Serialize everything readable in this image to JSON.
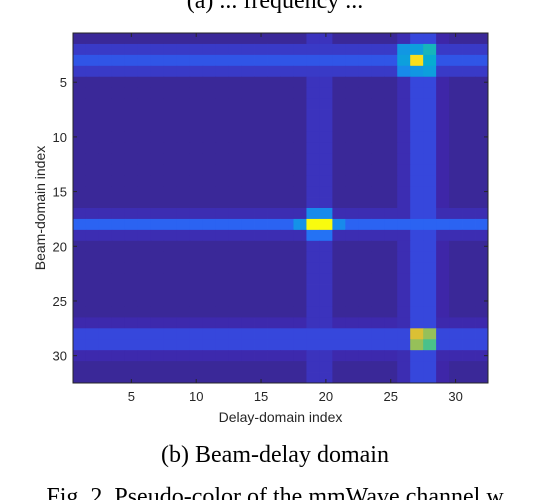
{
  "top_caption_fragment": "(a) ... frequency ...",
  "caption": "(b) Beam-delay domain",
  "bottom_caption_fragment": "Fig. 2. Pseudo-color of the mmWave channel w",
  "colors": {
    "background": "#3b23a3",
    "axis": "#262626"
  },
  "chart_data": {
    "type": "heatmap",
    "title": "",
    "xlabel": "Delay-domain index",
    "ylabel": "Beam-domain index",
    "xlim": [
      0.5,
      32.5
    ],
    "ylim": [
      0.5,
      32.5
    ],
    "y_reversed": true,
    "x_ticks": [
      5,
      10,
      15,
      20,
      25,
      30
    ],
    "y_ticks": [
      5,
      10,
      15,
      20,
      25,
      30
    ],
    "grid": false,
    "colormap": "parula",
    "rows": 32,
    "cols": 32,
    "base_value": 0.05,
    "peaks": [
      {
        "beam": 18,
        "delay": 19,
        "value": 1.0
      },
      {
        "beam": 18,
        "delay": 20,
        "value": 1.0
      },
      {
        "beam": 3,
        "delay": 27,
        "value": 0.95
      },
      {
        "beam": 28,
        "delay": 27,
        "value": 0.85
      },
      {
        "beam": 28,
        "delay": 28,
        "value": 0.75
      },
      {
        "beam": 29,
        "delay": 27,
        "value": 0.75
      },
      {
        "beam": 29,
        "delay": 28,
        "value": 0.65
      }
    ],
    "neighbors": [
      {
        "beam": 2,
        "delay": 26,
        "value": 0.42
      },
      {
        "beam": 2,
        "delay": 27,
        "value": 0.45
      },
      {
        "beam": 2,
        "delay": 28,
        "value": 0.55
      },
      {
        "beam": 3,
        "delay": 26,
        "value": 0.45
      },
      {
        "beam": 3,
        "delay": 28,
        "value": 0.5
      },
      {
        "beam": 4,
        "delay": 26,
        "value": 0.38
      },
      {
        "beam": 4,
        "delay": 27,
        "value": 0.42
      },
      {
        "beam": 4,
        "delay": 28,
        "value": 0.45
      },
      {
        "beam": 17,
        "delay": 19,
        "value": 0.38
      },
      {
        "beam": 17,
        "delay": 20,
        "value": 0.38
      },
      {
        "beam": 19,
        "delay": 19,
        "value": 0.32
      },
      {
        "beam": 19,
        "delay": 20,
        "value": 0.32
      },
      {
        "beam": 18,
        "delay": 18,
        "value": 0.4
      },
      {
        "beam": 18,
        "delay": 21,
        "value": 0.38
      }
    ],
    "row_stripes": [
      {
        "beam": 2,
        "value": 0.16
      },
      {
        "beam": 3,
        "value": 0.24
      },
      {
        "beam": 4,
        "value": 0.16
      },
      {
        "beam": 17,
        "value": 0.12
      },
      {
        "beam": 18,
        "value": 0.28
      },
      {
        "beam": 19,
        "value": 0.12
      },
      {
        "beam": 27,
        "value": 0.11
      },
      {
        "beam": 28,
        "value": 0.2
      },
      {
        "beam": 29,
        "value": 0.2
      },
      {
        "beam": 30,
        "value": 0.11
      }
    ],
    "col_stripes": [
      {
        "delay": 19,
        "value": 0.14
      },
      {
        "delay": 20,
        "value": 0.14
      },
      {
        "delay": 26,
        "value": 0.12
      },
      {
        "delay": 27,
        "value": 0.2
      },
      {
        "delay": 28,
        "value": 0.2
      },
      {
        "delay": 29,
        "value": 0.1
      }
    ]
  }
}
